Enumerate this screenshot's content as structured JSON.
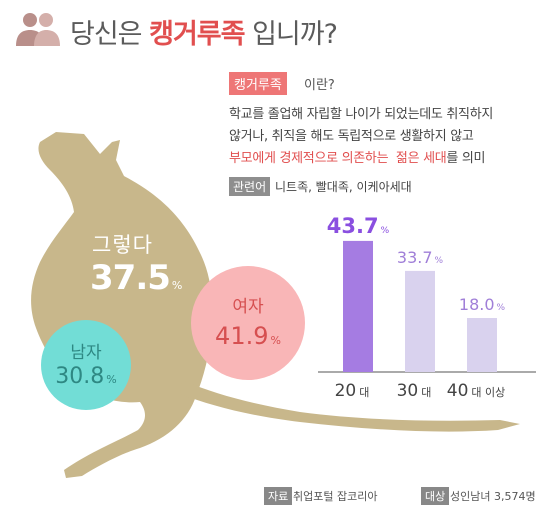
{
  "header": {
    "title_prefix": "당신은 ",
    "title_highlight": "캥거루족",
    "title_suffix": " 입니까?"
  },
  "definition": {
    "term": "캥거루족",
    "term_suffix": "이란?",
    "line1": "학교를 졸업해 자립할 나이가 되었는데도 취직하지",
    "line2": "않거나, 취직을 해도 독립적으로 생활하지 않고",
    "line3_red1": "부모에게 경제적으로 의존하는",
    "line3_space": "  ",
    "line3_red2": "젊은 세대",
    "line3_end": "를 의미",
    "related_label": "관련어",
    "related_terms": "니트족, 빨대족, 이케아세대"
  },
  "overall": {
    "label": "그렇다",
    "value": "37.5",
    "unit": "%"
  },
  "gender": {
    "male": {
      "label": "남자",
      "value": "30.8",
      "unit": "%"
    },
    "female": {
      "label": "여자",
      "value": "41.9",
      "unit": "%"
    }
  },
  "chart_data": {
    "type": "bar",
    "categories": [
      "20",
      "30",
      "40"
    ],
    "category_units": [
      "대",
      "대",
      "대 이상"
    ],
    "values": [
      43.7,
      33.7,
      18.0
    ],
    "value_labels": [
      "43.7",
      "33.7",
      "18.0"
    ],
    "value_unit": "%",
    "ylim": [
      0,
      50
    ],
    "colors": [
      "#a57ce2",
      "#d9d2ee",
      "#d9d2ee"
    ],
    "label_colors": [
      "#8a4fe0",
      "#a07fd8",
      "#a07fd8"
    ]
  },
  "colors": {
    "kangaroo": "#c8b78b",
    "accent_red": "#e14f4f",
    "male_circle": "#72ddd6",
    "female_circle": "#f9b6b7"
  },
  "footer": {
    "source_label": "자료",
    "source_text": "취업포털 잡코리아",
    "target_label": "대상",
    "target_text": "성인남녀 3,574명"
  }
}
